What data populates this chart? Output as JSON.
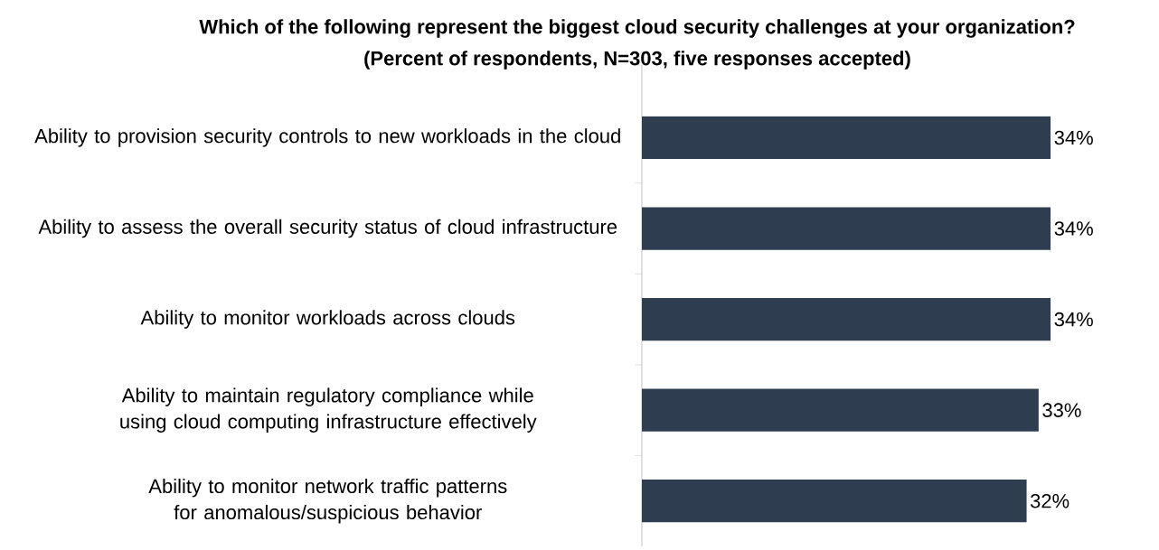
{
  "chart_data": {
    "type": "bar",
    "orientation": "horizontal",
    "title": "Which of the following represent the biggest cloud security challenges at your organization?",
    "subtitle": "(Percent of respondents, N=303, five responses accepted)",
    "categories": [
      "Ability to provision security controls to new workloads in the cloud",
      "Ability to assess the overall security status of cloud infrastructure",
      "Ability to monitor workloads across clouds",
      "Ability to maintain regulatory compliance while using cloud computing infrastructure effectively",
      "Ability to monitor network traffic patterns for anomalous/suspicious behavior"
    ],
    "values": [
      34,
      34,
      34,
      33,
      32
    ],
    "value_labels": [
      "34%",
      "34%",
      "34%",
      "33%",
      "32%"
    ],
    "color": "#2e3e50"
  }
}
